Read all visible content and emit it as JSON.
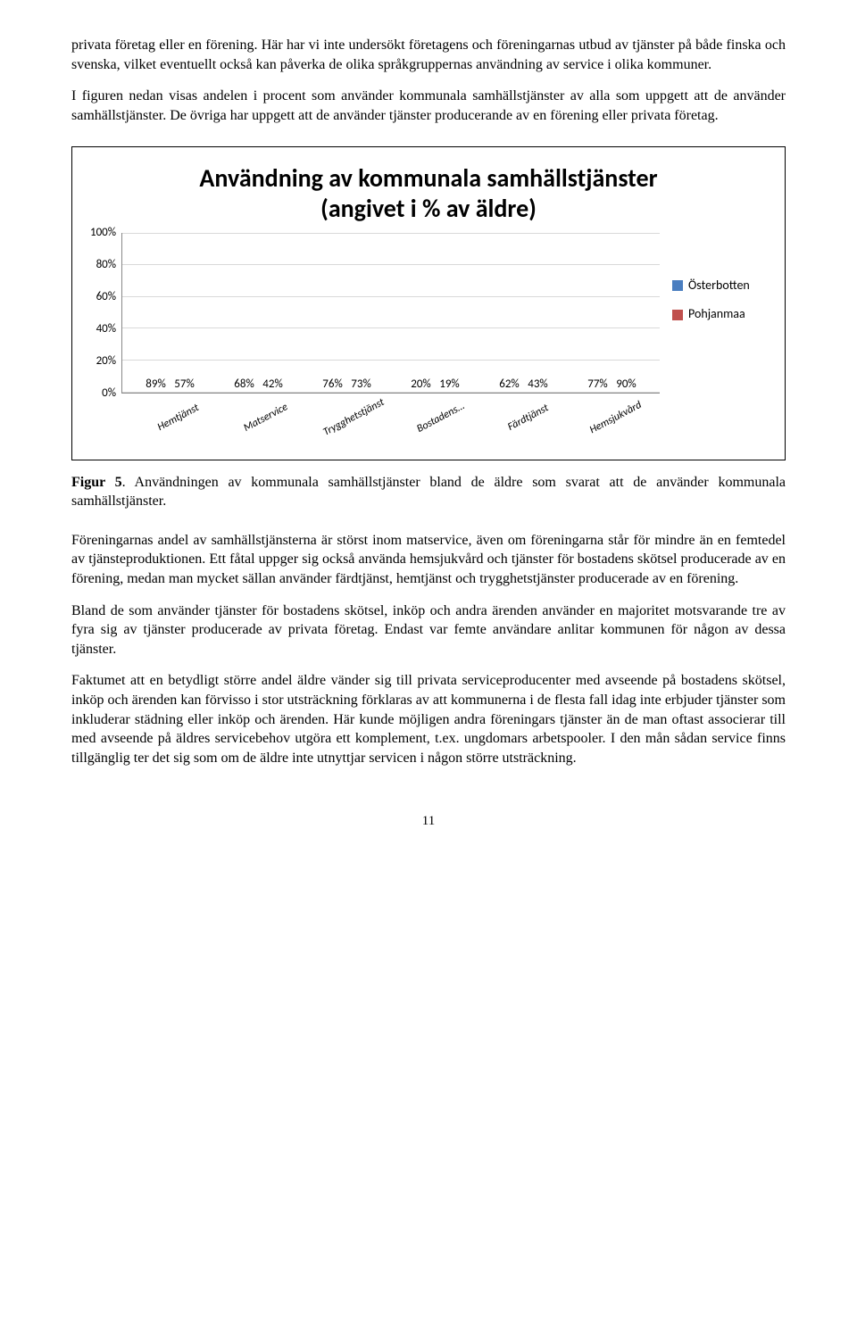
{
  "para1": "privata företag eller en förening. Här har vi inte undersökt företagens och föreningarnas utbud av tjänster på både finska och svenska, vilket eventuellt också kan påverka de olika språkgruppernas användning av service i olika kommuner.",
  "para2": "I figuren nedan visas andelen i procent som använder kommunala samhällstjänster av alla som uppgett att de använder samhällstjänster. De övriga har uppgett att de använder tjänster producerande av en förening eller privata företag.",
  "chart": {
    "title_line1": "Användning av kommunala samhällstjänster",
    "title_line2": "(angivet i % av äldre)",
    "y_ticks": [
      "100%",
      "80%",
      "60%",
      "40%",
      "20%",
      "0%"
    ],
    "ymax": 100,
    "series_colors": {
      "a": "#4a7ec0",
      "b": "#c0504d"
    },
    "legend": [
      {
        "label": "Österbotten",
        "color": "#4a7ec0"
      },
      {
        "label": "Pohjanmaa",
        "color": "#c0504d"
      }
    ],
    "categories": [
      {
        "label": "Hemtjänst",
        "a": 89,
        "b": 57
      },
      {
        "label": "Matservice",
        "a": 68,
        "b": 42
      },
      {
        "label": "Trygghetstjänst",
        "a": 76,
        "b": 73
      },
      {
        "label": "Bostadens…",
        "a": 20,
        "b": 19
      },
      {
        "label": "Färdtjänst",
        "a": 62,
        "b": 43
      },
      {
        "label": "Hemsjukvård",
        "a": 77,
        "b": 90
      }
    ]
  },
  "caption_bold": "Figur 5",
  "caption_rest": ". Användningen av kommunala samhällstjänster bland de äldre som svarat att de använder kommunala samhällstjänster.",
  "para3": "Föreningarnas andel av samhällstjänsterna är störst inom matservice, även om föreningarna står för mindre än en femtedel av tjänsteproduktionen. Ett fåtal uppger sig också använda hemsjukvård och tjänster för bostadens skötsel producerade av en förening, medan man mycket sällan använder färdtjänst, hemtjänst och trygghetstjänster producerade av en förening.",
  "para4": "Bland de som använder tjänster för bostadens skötsel, inköp och andra ärenden använder en majoritet motsvarande tre av fyra sig av tjänster producerade av privata företag. Endast var femte användare anlitar kommunen för någon av dessa tjänster.",
  "para5": "Faktumet att en betydligt större andel äldre vänder sig till privata serviceproducenter med avseende på bostadens skötsel, inköp och ärenden kan förvisso i stor utsträckning förklaras av att kommunerna i de flesta fall idag inte erbjuder tjänster som inkluderar städning eller inköp och ärenden. Här kunde möjligen andra föreningars tjänster än de man oftast associerar till med avseende på äldres servicebehov utgöra ett komplement, t.ex. ungdomars arbetspooler. I den mån sådan service finns tillgänglig ter det sig som om de äldre inte utnyttjar servicen i någon större utsträckning.",
  "page_number": "11"
}
